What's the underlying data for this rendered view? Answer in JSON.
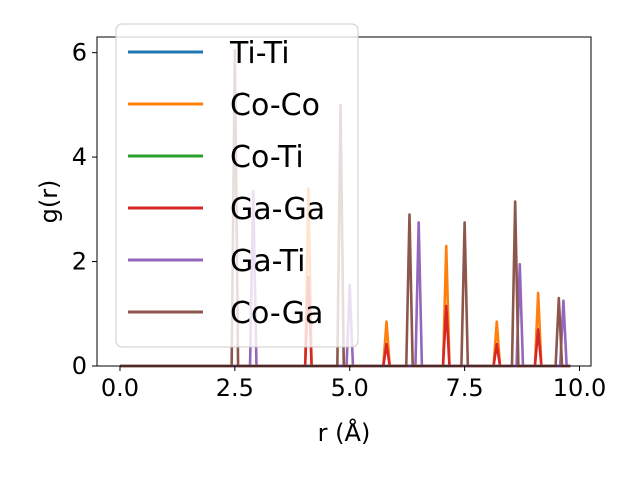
{
  "chart_data": {
    "type": "line",
    "title": "",
    "xlabel": "r (Å)",
    "ylabel": "g(r)",
    "xlim": [
      -0.5,
      10.25
    ],
    "ylim": [
      0,
      6.3
    ],
    "xticks": [
      0.0,
      2.5,
      5.0,
      7.5,
      10.0
    ],
    "xtick_labels": [
      "0.0",
      "2.5",
      "5.0",
      "7.5",
      "10.0"
    ],
    "yticks": [
      0,
      2,
      4,
      6
    ],
    "ytick_labels": [
      "0",
      "2",
      "4",
      "6"
    ],
    "x_range": [
      0.0,
      9.8
    ],
    "peak_width": 0.07,
    "grid": false,
    "legend_position": "upper-left",
    "series": [
      {
        "name": "Ti-Ti",
        "color": "#1f77b4",
        "peaks": []
      },
      {
        "name": "Co-Co",
        "color": "#ff7f0e",
        "peaks": [
          [
            4.1,
            3.4
          ],
          [
            5.8,
            0.85
          ],
          [
            7.1,
            2.3
          ],
          [
            8.2,
            0.85
          ],
          [
            9.1,
            1.4
          ]
        ]
      },
      {
        "name": "Co-Ti",
        "color": "#2ca02c",
        "peaks": []
      },
      {
        "name": "Ga-Ga",
        "color": "#d62728",
        "peaks": [
          [
            4.1,
            1.7
          ],
          [
            5.8,
            0.42
          ],
          [
            7.1,
            1.15
          ],
          [
            8.2,
            0.42
          ],
          [
            9.1,
            0.7
          ]
        ]
      },
      {
        "name": "Ga-Ti",
        "color": "#9467bd",
        "peaks": [
          [
            2.9,
            3.35
          ],
          [
            5.0,
            1.55
          ],
          [
            6.5,
            2.75
          ],
          [
            8.7,
            1.95
          ],
          [
            9.65,
            1.25
          ]
        ]
      },
      {
        "name": "Co-Ga",
        "color": "#8c564b",
        "peaks": [
          [
            2.5,
            6.05
          ],
          [
            4.8,
            5.0
          ],
          [
            6.3,
            2.9
          ],
          [
            7.5,
            2.75
          ],
          [
            8.6,
            3.15
          ],
          [
            9.55,
            1.3
          ]
        ]
      }
    ]
  }
}
